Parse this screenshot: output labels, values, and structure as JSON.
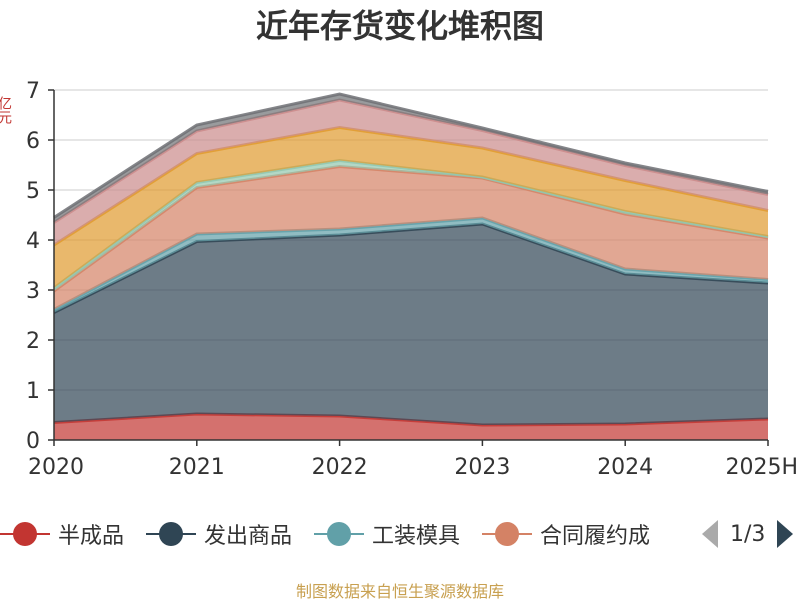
{
  "chart_data": {
    "type": "area",
    "stacked": true,
    "title": "近年存货变化堆积图",
    "ylabel": "亿元",
    "categories": [
      "2020",
      "2021",
      "2022",
      "2023",
      "2024",
      "2025H"
    ],
    "ylim": [
      0,
      7
    ],
    "yticks": [
      0,
      1,
      2,
      3,
      4,
      5,
      6,
      7
    ],
    "grid": true,
    "series": [
      {
        "name": "半成品",
        "color": "#c23531",
        "values": [
          0.35,
          0.52,
          0.48,
          0.3,
          0.32,
          0.42
        ]
      },
      {
        "name": "发出商品",
        "color": "#2f4554",
        "values": [
          2.2,
          3.45,
          3.62,
          4.02,
          3.0,
          2.72
        ]
      },
      {
        "name": "工装模具",
        "color": "#61a0a8",
        "values": [
          0.06,
          0.15,
          0.12,
          0.12,
          0.1,
          0.07
        ]
      },
      {
        "name": "合同履约成本",
        "color": "#d48265",
        "values": [
          0.37,
          0.93,
          1.25,
          0.8,
          1.1,
          0.83
        ]
      },
      {
        "color": "#91c7ae",
        "values": [
          0.06,
          0.1,
          0.12,
          0.02,
          0.05,
          0.03
        ]
      },
      {
        "color": "#e09a2e",
        "values": [
          0.86,
          0.58,
          0.66,
          0.58,
          0.62,
          0.52
        ]
      },
      {
        "color": "#ca8a8a",
        "values": [
          0.45,
          0.45,
          0.55,
          0.35,
          0.3,
          0.32
        ]
      },
      {
        "color": "#6e7074",
        "values": [
          0.1,
          0.12,
          0.12,
          0.05,
          0.05,
          0.06
        ]
      }
    ]
  },
  "legend": {
    "items": [
      {
        "label": "半成品",
        "color": "#c23531"
      },
      {
        "label": "发出商品",
        "color": "#2f4554"
      },
      {
        "label": "工装模具",
        "color": "#61a0a8"
      },
      {
        "label": "合同履约成",
        "color": "#d48265"
      }
    ],
    "page": "1/3"
  },
  "source": "制图数据来自恒生聚源数据库"
}
